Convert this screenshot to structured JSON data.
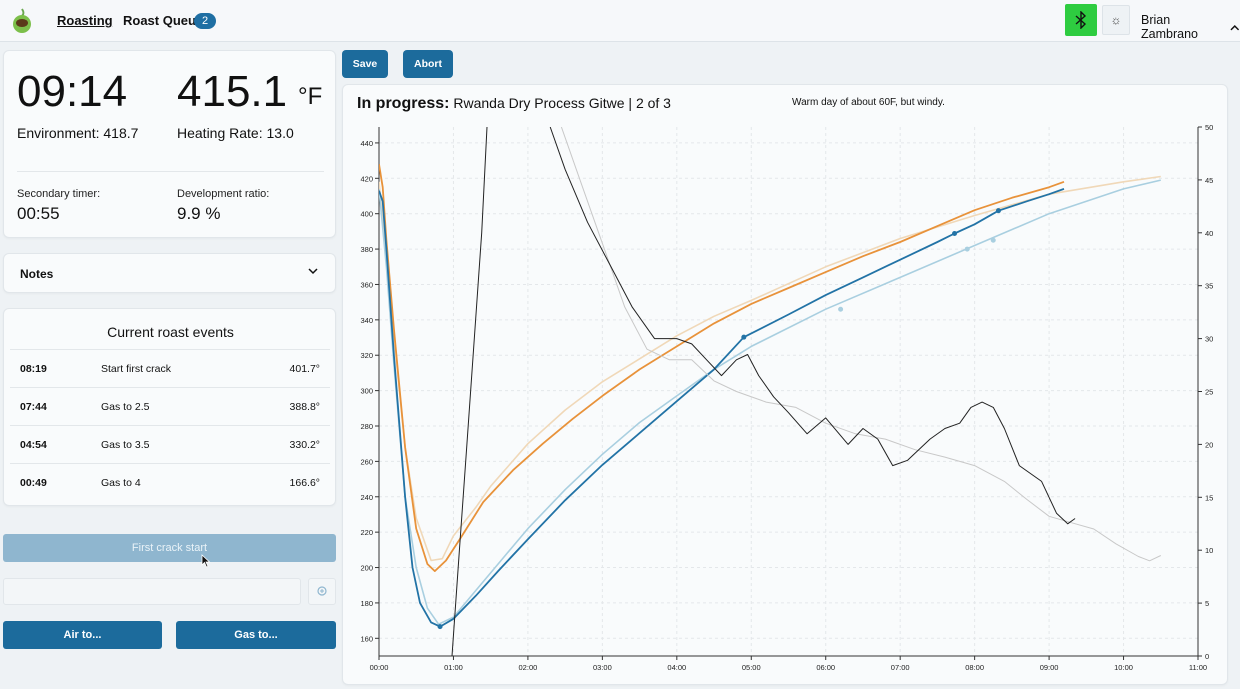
{
  "nav": {
    "roasting": "Roasting",
    "queue": "Roast Queue",
    "queue_count": "2",
    "user": "Brian Zambrano"
  },
  "readouts": {
    "time": "09:14",
    "temp": "415.1",
    "unit": "°F",
    "environment": "Environment: 418.7",
    "heating_rate": "Heating Rate: 13.0",
    "secondary_timer_label": "Secondary timer:",
    "secondary_timer": "00:55",
    "dev_ratio_label": "Development ratio:",
    "dev_ratio": "9.9 %"
  },
  "notes": {
    "label": "Notes"
  },
  "events": {
    "title": "Current roast events",
    "rows": [
      {
        "time": "08:19",
        "name": "Start first crack",
        "temp": "401.7°"
      },
      {
        "time": "07:44",
        "name": "Gas to 2.5",
        "temp": "388.8°"
      },
      {
        "time": "04:54",
        "name": "Gas to 3.5",
        "temp": "330.2°"
      },
      {
        "time": "00:49",
        "name": "Gas to 4",
        "temp": "166.6°"
      }
    ]
  },
  "controls": {
    "first_crack": "First crack start",
    "air": "Air to...",
    "gas": "Gas to...",
    "save": "Save",
    "abort": "Abort"
  },
  "chart_header": {
    "status": "In progress:",
    "roast": "Rwanda Dry Process Gitwe | 2 of 3",
    "note": "Warm day of about 60F, but windy."
  },
  "colors": {
    "accent": "#1c6b9c",
    "bluetooth": "#2ecc40",
    "bean": "#2273a6",
    "env": "#e8923a",
    "bean_ref": "#a9cfe0",
    "env_ref": "#f0d8b8",
    "ror": "#222222",
    "ror_ref": "#c8c8c8"
  },
  "chart_data": {
    "type": "line",
    "xlabel": "",
    "ylabel": "",
    "x_ticks": [
      "00:00",
      "01:00",
      "02:00",
      "03:00",
      "04:00",
      "05:00",
      "06:00",
      "07:00",
      "08:00",
      "09:00",
      "10:00",
      "11:00"
    ],
    "xlim": [
      0,
      11
    ],
    "y_ticks": [
      160,
      180,
      200,
      220,
      240,
      260,
      280,
      300,
      320,
      340,
      360,
      380,
      400,
      420,
      440
    ],
    "ylim": [
      150,
      449
    ],
    "y2_ticks": [
      0,
      5,
      10,
      15,
      20,
      25,
      30,
      35,
      40,
      45,
      50
    ],
    "y2lim": [
      0,
      50
    ],
    "series": [
      {
        "axis": "left",
        "color_key": "env_ref",
        "points": [
          [
            0,
            418
          ],
          [
            0.1,
            375
          ],
          [
            0.2,
            330
          ],
          [
            0.35,
            268
          ],
          [
            0.5,
            228
          ],
          [
            0.7,
            204
          ],
          [
            0.85,
            205
          ],
          [
            1,
            218
          ],
          [
            1.3,
            234
          ],
          [
            1.5,
            246
          ],
          [
            2,
            270
          ],
          [
            2.5,
            289
          ],
          [
            3,
            305
          ],
          [
            3.5,
            318
          ],
          [
            4,
            331
          ],
          [
            4.5,
            342
          ],
          [
            5,
            351
          ],
          [
            6,
            370
          ],
          [
            7,
            386
          ],
          [
            8,
            399
          ],
          [
            9,
            411
          ],
          [
            10,
            418
          ],
          [
            10.5,
            421
          ]
        ]
      },
      {
        "axis": "left",
        "color_key": "bean_ref",
        "points": [
          [
            0,
            414
          ],
          [
            0.1,
            370
          ],
          [
            0.2,
            315
          ],
          [
            0.35,
            240
          ],
          [
            0.5,
            200
          ],
          [
            0.65,
            177
          ],
          [
            0.8,
            168
          ],
          [
            1,
            172
          ],
          [
            1.3,
            187
          ],
          [
            1.6,
            202
          ],
          [
            2,
            222
          ],
          [
            2.5,
            244
          ],
          [
            3,
            264
          ],
          [
            3.5,
            282
          ],
          [
            4,
            297
          ],
          [
            4.5,
            312
          ],
          [
            5,
            325
          ],
          [
            6,
            346
          ],
          [
            7,
            364
          ],
          [
            8,
            382
          ],
          [
            9,
            400
          ],
          [
            10,
            414
          ],
          [
            10.5,
            419
          ]
        ]
      },
      {
        "axis": "left",
        "color_key": "env",
        "points": [
          [
            0,
            428
          ],
          [
            0.05,
            415
          ],
          [
            0.1,
            385
          ],
          [
            0.2,
            335
          ],
          [
            0.35,
            268
          ],
          [
            0.5,
            222
          ],
          [
            0.65,
            202
          ],
          [
            0.75,
            198
          ],
          [
            0.9,
            204
          ],
          [
            1.1,
            217
          ],
          [
            1.4,
            237
          ],
          [
            1.8,
            255
          ],
          [
            2.2,
            270
          ],
          [
            2.6,
            284
          ],
          [
            3,
            297
          ],
          [
            3.5,
            312
          ],
          [
            4,
            325
          ],
          [
            4.5,
            338
          ],
          [
            5,
            349
          ],
          [
            5.5,
            358
          ],
          [
            6,
            367
          ],
          [
            6.5,
            376
          ],
          [
            7,
            384
          ],
          [
            7.5,
            393
          ],
          [
            8,
            402
          ],
          [
            8.5,
            409
          ],
          [
            9,
            415
          ],
          [
            9.2,
            418
          ]
        ]
      },
      {
        "axis": "left",
        "color_key": "bean",
        "points": [
          [
            0,
            413
          ],
          [
            0.05,
            407
          ],
          [
            0.1,
            380
          ],
          [
            0.2,
            320
          ],
          [
            0.35,
            240
          ],
          [
            0.45,
            200
          ],
          [
            0.55,
            180
          ],
          [
            0.7,
            169
          ],
          [
            0.82,
            166.6
          ],
          [
            1,
            171
          ],
          [
            1.3,
            184
          ],
          [
            1.6,
            198
          ],
          [
            2,
            216
          ],
          [
            2.5,
            238
          ],
          [
            3,
            258
          ],
          [
            3.5,
            276
          ],
          [
            4,
            294
          ],
          [
            4.5,
            312
          ],
          [
            4.9,
            330.2
          ],
          [
            5.5,
            343
          ],
          [
            6,
            354
          ],
          [
            6.5,
            364
          ],
          [
            7,
            374
          ],
          [
            7.5,
            384
          ],
          [
            7.73,
            388.8
          ],
          [
            8,
            394
          ],
          [
            8.32,
            401.7
          ],
          [
            8.7,
            407
          ],
          [
            9,
            411
          ],
          [
            9.2,
            414
          ]
        ]
      },
      {
        "axis": "right",
        "color_key": "ror_ref",
        "points": [
          [
            2.45,
            50
          ],
          [
            2.7,
            45
          ],
          [
            3,
            39
          ],
          [
            3.3,
            33
          ],
          [
            3.6,
            29
          ],
          [
            3.9,
            28
          ],
          [
            4.2,
            28
          ],
          [
            4.5,
            26
          ],
          [
            4.8,
            25
          ],
          [
            5.2,
            24
          ],
          [
            5.6,
            23.5
          ],
          [
            6,
            22
          ],
          [
            6.4,
            21
          ],
          [
            6.8,
            20.5
          ],
          [
            7.2,
            19.5
          ],
          [
            7.6,
            18.8
          ],
          [
            8,
            18
          ],
          [
            8.4,
            16.5
          ],
          [
            8.7,
            14.8
          ],
          [
            9,
            13.2
          ],
          [
            9.3,
            12.6
          ],
          [
            9.6,
            12
          ],
          [
            9.9,
            10.6
          ],
          [
            10.2,
            9.4
          ],
          [
            10.35,
            9
          ],
          [
            10.5,
            9.5
          ]
        ]
      },
      {
        "axis": "right",
        "color_key": "ror",
        "points": [
          [
            2.3,
            50
          ],
          [
            2.5,
            46
          ],
          [
            2.8,
            41
          ],
          [
            3.1,
            37
          ],
          [
            3.4,
            33
          ],
          [
            3.7,
            30
          ],
          [
            4,
            30
          ],
          [
            4.2,
            29.5
          ],
          [
            4.4,
            28
          ],
          [
            4.6,
            26.5
          ],
          [
            4.8,
            28
          ],
          [
            4.95,
            28.5
          ],
          [
            5.1,
            26.5
          ],
          [
            5.3,
            24.5
          ],
          [
            5.5,
            23
          ],
          [
            5.75,
            21
          ],
          [
            6,
            22.5
          ],
          [
            6.3,
            20
          ],
          [
            6.5,
            21.5
          ],
          [
            6.7,
            20.5
          ],
          [
            6.9,
            18
          ],
          [
            7.1,
            18.5
          ],
          [
            7.4,
            20.5
          ],
          [
            7.6,
            21.5
          ],
          [
            7.8,
            22
          ],
          [
            7.95,
            23.5
          ],
          [
            8.1,
            24
          ],
          [
            8.25,
            23.5
          ],
          [
            8.4,
            21.5
          ],
          [
            8.6,
            18
          ],
          [
            8.9,
            16.5
          ],
          [
            9.1,
            13.5
          ],
          [
            9.25,
            12.5
          ],
          [
            9.35,
            13
          ]
        ]
      },
      {
        "axis": "right",
        "color_key": "ror",
        "points": [
          [
            0.98,
            0
          ],
          [
            1.08,
            10
          ],
          [
            1.18,
            20
          ],
          [
            1.28,
            30
          ],
          [
            1.38,
            40
          ],
          [
            1.45,
            50
          ]
        ]
      }
    ],
    "markers": [
      {
        "series": "bean",
        "x": 0.82,
        "y": 166.6
      },
      {
        "series": "bean",
        "x": 4.9,
        "y": 330.2
      },
      {
        "series": "bean",
        "x": 7.73,
        "y": 388.8
      },
      {
        "series": "bean",
        "x": 8.32,
        "y": 401.7
      },
      {
        "series": "bean_ref",
        "x": 6.2,
        "y": 346
      },
      {
        "series": "bean_ref",
        "x": 7.9,
        "y": 380
      },
      {
        "series": "bean_ref",
        "x": 8.25,
        "y": 385
      }
    ]
  }
}
